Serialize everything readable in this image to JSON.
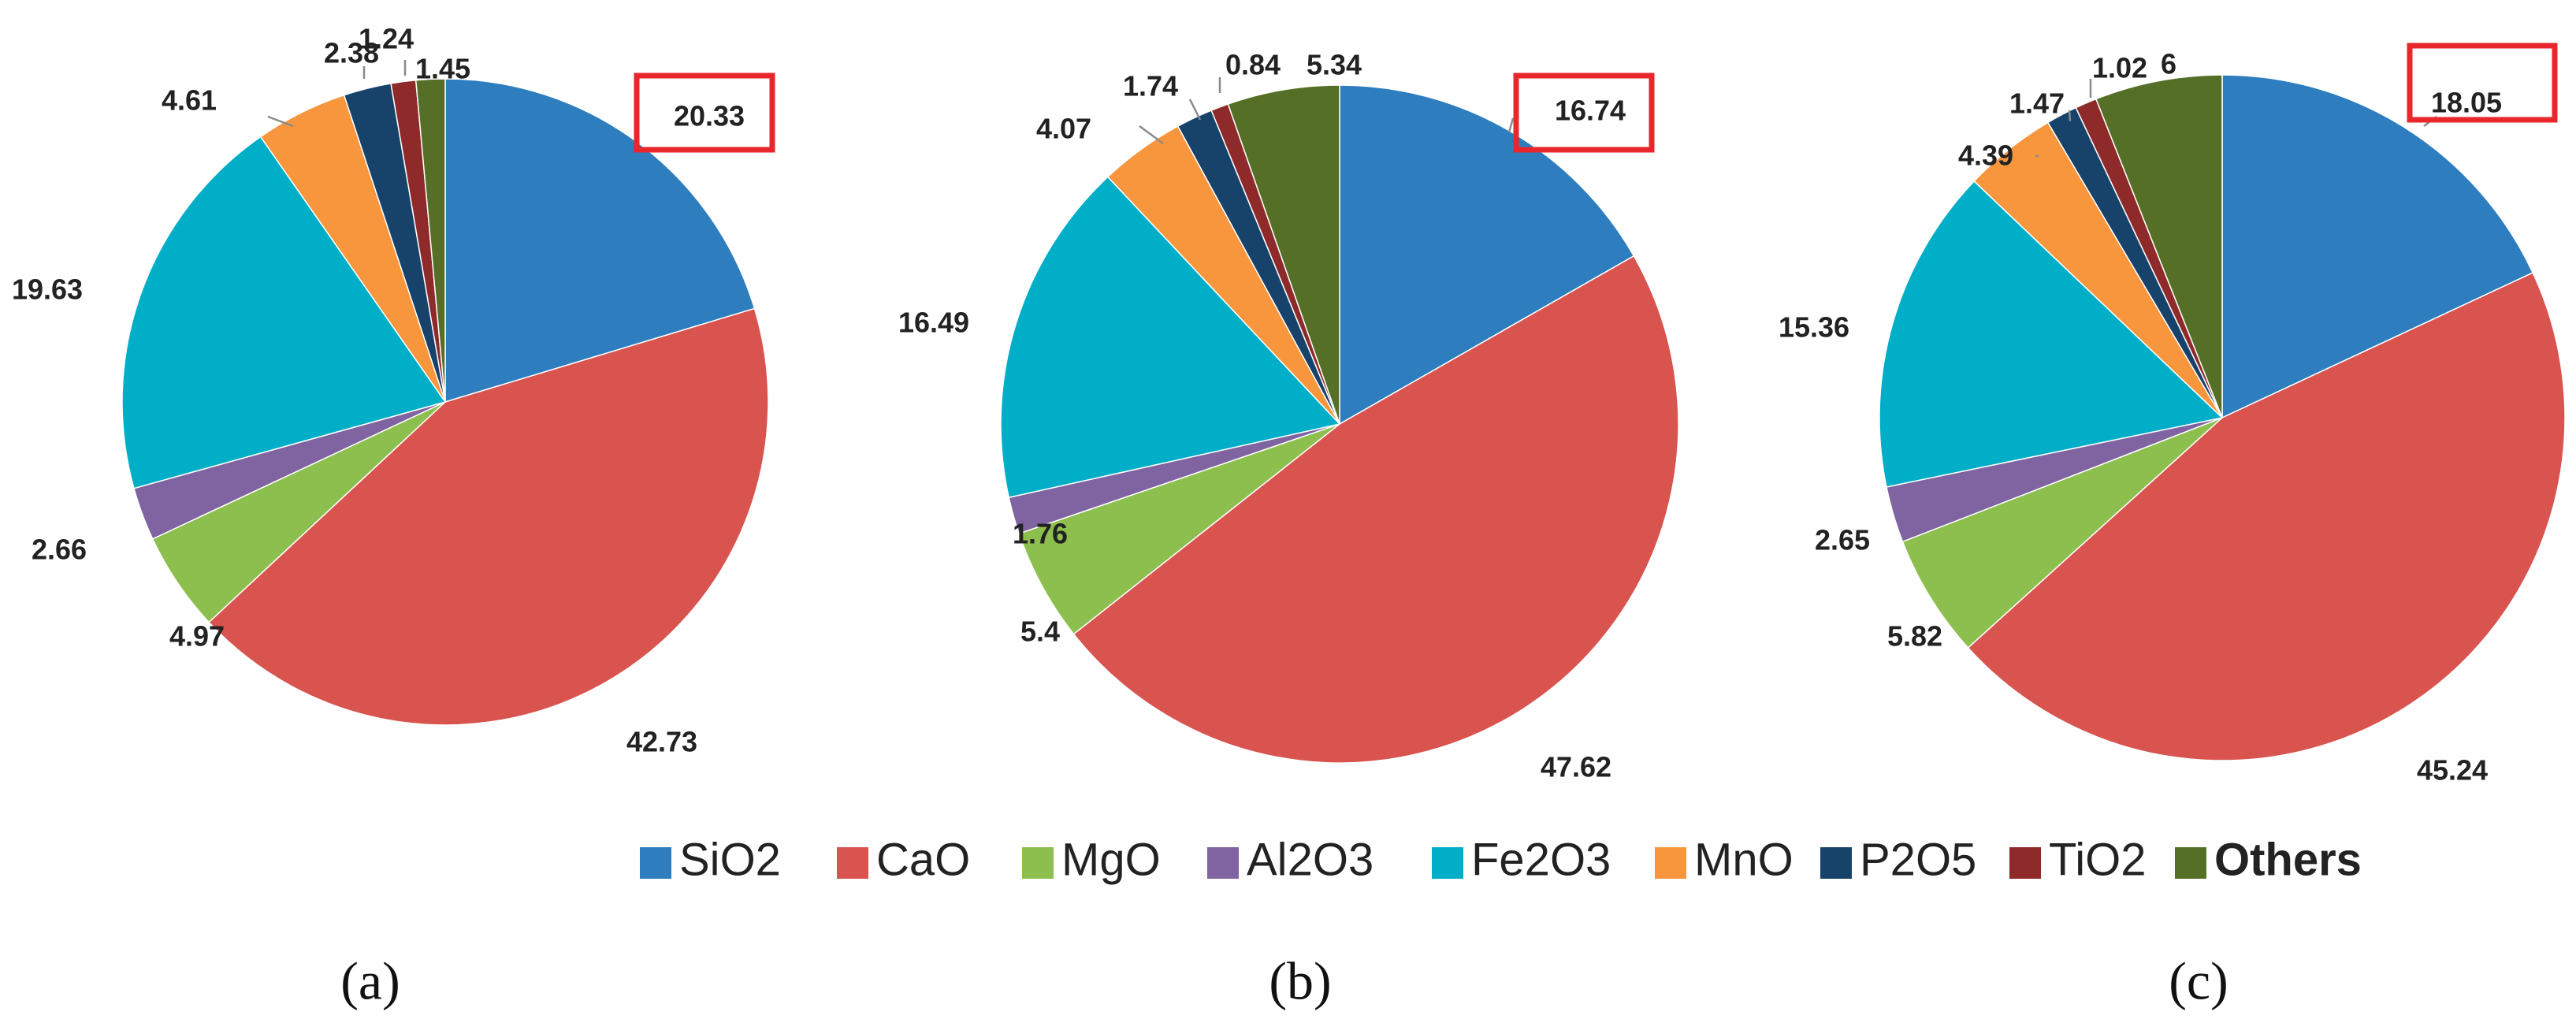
{
  "chart_data": [
    {
      "type": "pie",
      "panel_label": "(a)",
      "start_angle_deg": 0,
      "direction": "clockwise",
      "categories": [
        "SiO2",
        "CaO",
        "MgO",
        "Al2O3",
        "Fe2O3",
        "MnO",
        "P2O5",
        "TiO2",
        "Others"
      ],
      "values": [
        20.33,
        42.73,
        4.97,
        2.66,
        19.63,
        4.61,
        2.38,
        1.24,
        1.45
      ],
      "value_labels": [
        "20.33",
        "42.73",
        "4.97",
        "2.66",
        "19.63",
        "4.61",
        "2.38",
        "1.24",
        "1.45"
      ],
      "highlighted_category": "SiO2"
    },
    {
      "type": "pie",
      "panel_label": "(b)",
      "start_angle_deg": 0,
      "direction": "clockwise",
      "categories": [
        "SiO2",
        "CaO",
        "MgO",
        "Al2O3",
        "Fe2O3",
        "MnO",
        "P2O5",
        "TiO2",
        "Others"
      ],
      "values": [
        16.74,
        47.62,
        5.4,
        1.76,
        16.49,
        4.07,
        1.74,
        0.84,
        5.34
      ],
      "value_labels": [
        "16.74",
        "47.62",
        "5.4",
        "1.76",
        "16.49",
        "4.07",
        "1.74",
        "0.84",
        "5.34"
      ],
      "highlighted_category": "SiO2"
    },
    {
      "type": "pie",
      "panel_label": "(c)",
      "start_angle_deg": 0,
      "direction": "clockwise",
      "categories": [
        "SiO2",
        "CaO",
        "MgO",
        "Al2O3",
        "Fe2O3",
        "MnO",
        "P2O5",
        "TiO2",
        "Others"
      ],
      "values": [
        18.05,
        45.24,
        5.82,
        2.65,
        15.36,
        4.39,
        1.47,
        1.02,
        6
      ],
      "value_labels": [
        "18.05",
        "45.24",
        "5.82",
        "2.65",
        "15.36",
        "4.39",
        "1.47",
        "1.02",
        "6"
      ],
      "highlighted_category": "SiO2"
    }
  ],
  "legend": {
    "placement": "bottom-center",
    "items": [
      {
        "label": "SiO2",
        "color": "#2E7EBF",
        "bold": false
      },
      {
        "label": "CaO",
        "color": "#D9534F",
        "bold": false
      },
      {
        "label": "MgO",
        "color": "#8DBF4E",
        "bold": false
      },
      {
        "label": "Al2O3",
        "color": "#8064A2",
        "bold": false
      },
      {
        "label": "Fe2O3",
        "color": "#00AEC7",
        "bold": false
      },
      {
        "label": "MnO",
        "color": "#F7963C",
        "bold": false
      },
      {
        "label": "P2O5",
        "color": "#17436B",
        "bold": false
      },
      {
        "label": "TiO2",
        "color": "#8E2A2A",
        "bold": false
      },
      {
        "label": "Others",
        "color": "#557026",
        "bold": true
      }
    ]
  },
  "colors": {
    "highlight_box": "#E8262C",
    "leader_line": "#8A8A8A",
    "label_text": "#222222"
  }
}
